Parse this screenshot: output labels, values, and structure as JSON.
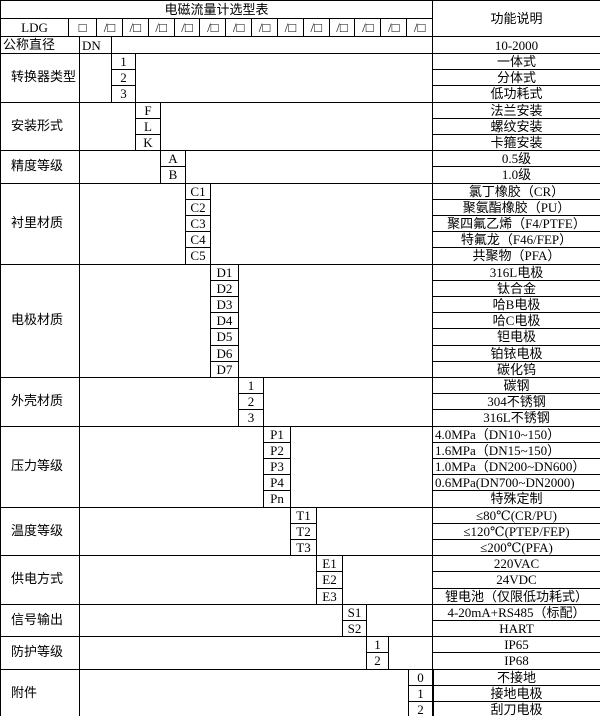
{
  "header": {
    "title": "电磁流量计选型表",
    "function_label": "功能说明",
    "model_prefix": "LDG",
    "first_box": "□",
    "boxes": [
      "/□",
      "/□",
      "/□",
      "/□",
      "/□",
      "/□",
      "/□",
      "/□",
      "/□",
      "/□",
      "/□",
      "/□",
      "/□"
    ]
  },
  "nominal": {
    "label": "公称直径",
    "code": "DN",
    "desc": "10-2000"
  },
  "groups": [
    {
      "label": "转换器类型",
      "codes": [
        "1",
        "2",
        "3"
      ],
      "descs": [
        "一体式",
        "分体式",
        "低功耗式"
      ]
    },
    {
      "label": "安装形式",
      "codes": [
        "F",
        "L",
        "K"
      ],
      "descs": [
        "法兰安装",
        "螺纹安装",
        "卡箍安装"
      ]
    },
    {
      "label": "精度等级",
      "codes": [
        "A",
        "B"
      ],
      "descs": [
        "0.5级",
        "1.0级"
      ]
    },
    {
      "label": "衬里材质",
      "codes": [
        "C1",
        "C2",
        "C3",
        "C4",
        "C5"
      ],
      "descs": [
        "氯丁橡胶（CR）",
        "聚氨酯橡胶（PU）",
        "聚四氟乙烯（F4/PTFE）",
        "特氟龙（F46/FEP）",
        "共聚物（PFA）"
      ]
    },
    {
      "label": "电极材质",
      "codes": [
        "D1",
        "D2",
        "D3",
        "D4",
        "D5",
        "D6",
        "D7"
      ],
      "descs": [
        "316L电极",
        "钛合金",
        "哈B电极",
        "哈C电极",
        "钽电极",
        "铂铱电极",
        "碳化钨"
      ]
    },
    {
      "label": "外壳材质",
      "codes": [
        "1",
        "2",
        "3"
      ],
      "descs": [
        "碳钢",
        "304不锈钢",
        "316L不锈钢"
      ]
    },
    {
      "label": "压力等级",
      "codes": [
        "P1",
        "P2",
        "P3",
        "P4",
        "Pn"
      ],
      "descs": [
        "4.0MPa（DN10~150）",
        "1.6MPa（DN15~150）",
        "1.0MPa（DN200~DN600）",
        "0.6MPa(DN700~DN2000)",
        "特殊定制"
      ]
    },
    {
      "label": "温度等级",
      "codes": [
        "T1",
        "T2",
        "T3"
      ],
      "descs": [
        "≤80℃(CR/PU)",
        "≤120℃(PTEP/FEP)",
        "≤200℃(PFA)"
      ]
    },
    {
      "label": "供电方式",
      "codes": [
        "E1",
        "E2",
        "E3"
      ],
      "descs": [
        "220VAC",
        "24VDC",
        "锂电池（仅限低功耗式）"
      ]
    },
    {
      "label": "信号输出",
      "codes": [
        "S1",
        "S2"
      ],
      "descs": [
        "4-20mA+RS485（标配）",
        "HART"
      ]
    },
    {
      "label": "防护等级",
      "codes": [
        "1",
        "2"
      ],
      "descs": [
        "IP65",
        "IP68"
      ]
    },
    {
      "label": "附件",
      "codes": [
        "0",
        "1",
        "2"
      ],
      "descs": [
        "不接地",
        "接地电极",
        "刮刀电极"
      ]
    }
  ]
}
